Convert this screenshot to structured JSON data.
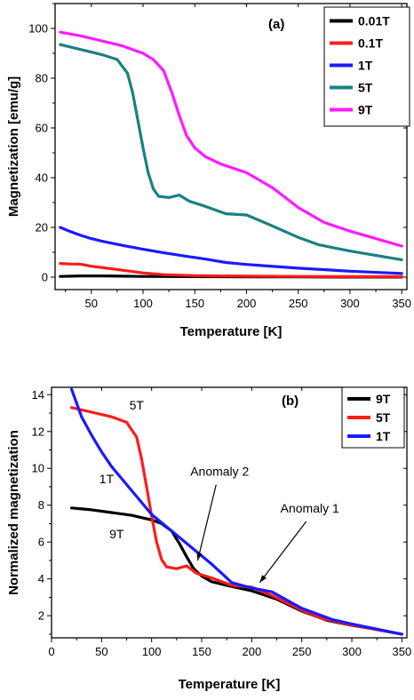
{
  "chart_data": [
    {
      "type": "line",
      "panel_label": "(a)",
      "xlabel": "Temperature [K]",
      "ylabel": "Magnetization [emu/g]",
      "xlim": [
        15,
        355
      ],
      "ylim": [
        -5,
        110
      ],
      "xticks": [
        50,
        100,
        150,
        200,
        250,
        300,
        350
      ],
      "yticks": [
        0,
        20,
        40,
        60,
        80,
        100
      ],
      "grid": false,
      "legend_position": "top-right",
      "series": [
        {
          "name": "0.01T",
          "color": "#000000",
          "x": [
            20,
            40,
            60,
            80,
            100,
            150,
            200,
            250,
            300,
            350
          ],
          "y": [
            0.3,
            0.5,
            0.5,
            0.4,
            0.3,
            0.2,
            0.1,
            0.1,
            0.05,
            0.05
          ]
        },
        {
          "name": "0.1T",
          "color": "#ff1a1a",
          "x": [
            20,
            30,
            40,
            50,
            60,
            80,
            100,
            120,
            150,
            200,
            250,
            300,
            350
          ],
          "y": [
            5.5,
            5.3,
            5.2,
            4.4,
            3.9,
            2.8,
            1.7,
            1.0,
            0.6,
            0.4,
            0.3,
            0.2,
            0.2
          ]
        },
        {
          "name": "1T",
          "color": "#1a1aff",
          "x": [
            20,
            30,
            40,
            50,
            60,
            80,
            100,
            120,
            140,
            160,
            180,
            200,
            220,
            250,
            280,
            300,
            350
          ],
          "y": [
            20,
            18.3,
            16.8,
            15.5,
            14.5,
            12.8,
            11.2,
            9.8,
            8.5,
            7.3,
            5.9,
            5.1,
            4.5,
            3.6,
            2.9,
            2.4,
            1.5
          ]
        },
        {
          "name": "5T",
          "color": "#1a8080",
          "x": [
            20,
            40,
            60,
            75,
            85,
            90,
            95,
            100,
            105,
            110,
            115,
            125,
            135,
            145,
            160,
            180,
            200,
            220,
            250,
            270,
            300,
            350
          ],
          "y": [
            93.5,
            91.5,
            89.5,
            87.5,
            82,
            74,
            63,
            52,
            42,
            35.5,
            32.5,
            32,
            33,
            30.5,
            28.5,
            25.5,
            25,
            21.5,
            16,
            13,
            10.5,
            7
          ]
        },
        {
          "name": "9T",
          "color": "#ff1aff",
          "x": [
            20,
            40,
            60,
            80,
            100,
            110,
            120,
            128,
            135,
            142,
            150,
            160,
            175,
            200,
            225,
            250,
            275,
            300,
            325,
            350
          ],
          "y": [
            98.5,
            97,
            95,
            93,
            90,
            87.5,
            83,
            74,
            65,
            57,
            52,
            48.5,
            45.5,
            42,
            36,
            28,
            22,
            18.5,
            15.5,
            12.5
          ]
        }
      ]
    },
    {
      "type": "line",
      "panel_label": "(b)",
      "xlabel": "Temperature [K]",
      "ylabel": "Normalized magnetization",
      "xlim": [
        0,
        355
      ],
      "ylim": [
        0.8,
        14.4
      ],
      "xticks": [
        0,
        50,
        100,
        150,
        200,
        250,
        300,
        350
      ],
      "yticks": [
        2,
        4,
        6,
        8,
        10,
        12,
        14
      ],
      "grid": false,
      "legend_position": "top-right",
      "series": [
        {
          "name": "9T",
          "color": "#000000",
          "x": [
            20,
            40,
            60,
            80,
            100,
            110,
            120,
            128,
            135,
            142,
            150,
            160,
            175,
            200,
            225,
            250,
            275,
            300,
            325,
            350
          ],
          "y": [
            7.85,
            7.75,
            7.6,
            7.45,
            7.2,
            7.0,
            6.6,
            5.9,
            5.2,
            4.55,
            4.15,
            3.85,
            3.65,
            3.35,
            2.9,
            2.25,
            1.75,
            1.48,
            1.25,
            1.0
          ]
        },
        {
          "name": "5T",
          "color": "#ff1a1a",
          "x": [
            20,
            40,
            60,
            75,
            85,
            90,
            95,
            100,
            105,
            110,
            115,
            125,
            135,
            145,
            160,
            180,
            200,
            220,
            250,
            270,
            300,
            350
          ],
          "y": [
            13.3,
            13.05,
            12.8,
            12.5,
            11.7,
            10.5,
            9.0,
            7.4,
            6.0,
            5.05,
            4.65,
            4.55,
            4.7,
            4.3,
            4.05,
            3.65,
            3.55,
            3.1,
            2.3,
            1.85,
            1.5,
            1.0
          ]
        },
        {
          "name": "1T",
          "color": "#1a1aff",
          "x": [
            20,
            30,
            40,
            50,
            60,
            80,
            100,
            120,
            140,
            160,
            180,
            200,
            220,
            250,
            280,
            300,
            350
          ],
          "y": [
            14.3,
            12.8,
            11.8,
            10.9,
            10.1,
            8.8,
            7.5,
            6.6,
            5.7,
            4.8,
            3.8,
            3.5,
            3.3,
            2.4,
            1.8,
            1.55,
            1.0
          ]
        }
      ],
      "annotations": [
        {
          "text": "5T",
          "x": 85,
          "y": 13.2
        },
        {
          "text": "1T",
          "x": 55,
          "y": 9.2
        },
        {
          "text": "9T",
          "x": 65,
          "y": 6.2
        },
        {
          "text": "Anomaly 2",
          "x": 168,
          "y": 9.6,
          "arrow_to": [
            146,
            5.0
          ]
        },
        {
          "text": "Anomaly 1",
          "x": 258,
          "y": 7.6,
          "arrow_to": [
            208,
            3.8
          ]
        }
      ]
    }
  ]
}
